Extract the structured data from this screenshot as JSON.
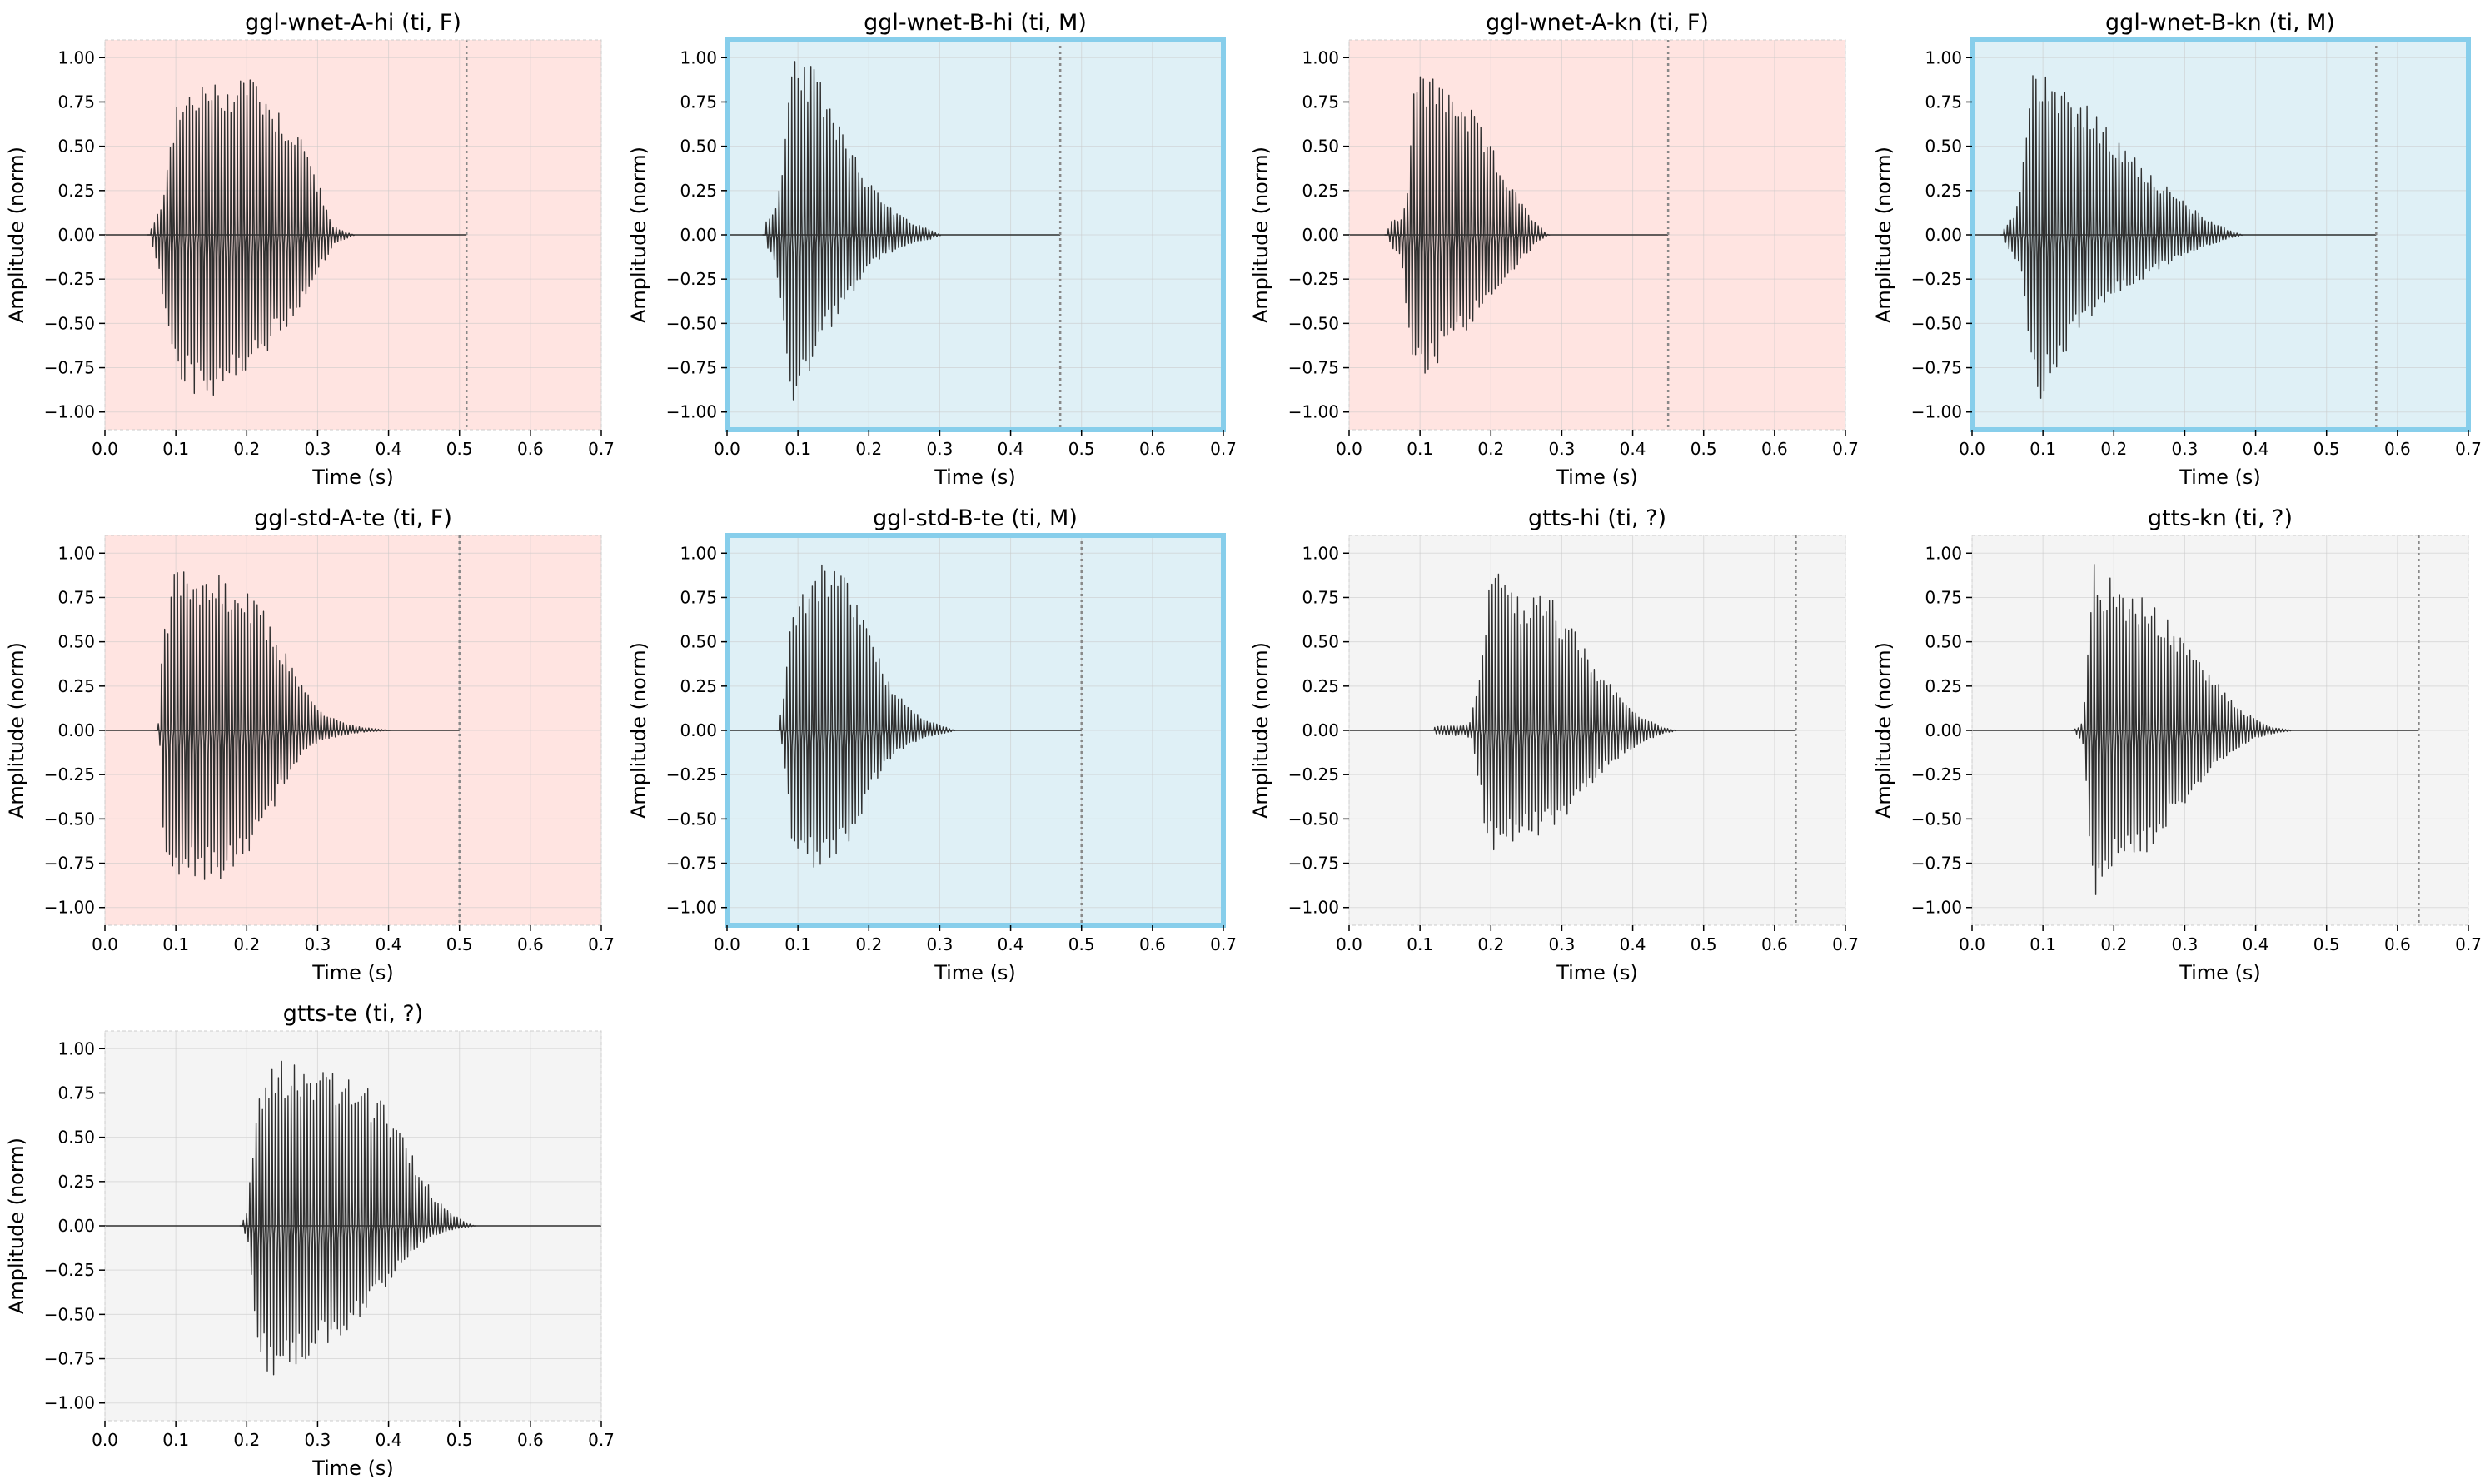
{
  "figure": {
    "background": "#ffffff",
    "panel_styles": {
      "F": {
        "background": "#ffe4e1",
        "border": "#cccccc",
        "highlight_border": false
      },
      "M": {
        "background": "#dff0f6",
        "border": "#87ceeb",
        "highlight_border": true
      },
      "?": {
        "background": "#f4f4f4",
        "border": "#cccccc",
        "highlight_border": false
      }
    },
    "waveform_color": "#2f2f2f",
    "marker_color": "#888888"
  },
  "chart_data": [
    {
      "type": "line",
      "title": "ggl-wnet-A-hi (ti, F)",
      "gender": "F",
      "xlabel": "Time (s)",
      "ylabel": "Amplitude (norm)",
      "xlim": [
        0,
        0.7
      ],
      "ylim": [
        -1.1,
        1.1
      ],
      "xticks": [
        0.0,
        0.1,
        0.2,
        0.3,
        0.4,
        0.5,
        0.6,
        0.7
      ],
      "xtick_labels": [
        "0.0",
        "0.1",
        "0.2",
        "0.3",
        "0.4",
        "0.5",
        "0.6",
        "0.7"
      ],
      "yticks": [
        1.0,
        0.75,
        0.5,
        0.25,
        0.0,
        -0.25,
        -0.5,
        -0.75,
        -1.0
      ],
      "ytick_labels": [
        "1.00",
        "0.75",
        "0.50",
        "0.25",
        "0.00",
        "−0.25",
        "−0.50",
        "−0.75",
        "−1.00"
      ],
      "grid": true,
      "signal_end": 0.51,
      "end_marker": 0.51,
      "envelope": {
        "t": [
          0.06,
          0.065,
          0.07,
          0.08,
          0.09,
          0.1,
          0.12,
          0.14,
          0.16,
          0.18,
          0.2,
          0.22,
          0.24,
          0.26,
          0.28,
          0.3,
          0.32,
          0.35
        ],
        "upper": [
          0,
          0.04,
          0.08,
          0.2,
          0.55,
          0.72,
          0.85,
          0.88,
          0.86,
          0.9,
          0.97,
          0.88,
          0.75,
          0.65,
          0.55,
          0.3,
          0.05,
          0
        ],
        "lower": [
          0,
          -0.08,
          -0.15,
          -0.4,
          -0.7,
          -0.82,
          -0.9,
          -0.95,
          -0.88,
          -0.82,
          -0.78,
          -0.72,
          -0.6,
          -0.5,
          -0.4,
          -0.2,
          -0.05,
          0
        ]
      }
    },
    {
      "type": "line",
      "title": "ggl-wnet-B-hi (ti, M)",
      "gender": "M",
      "xlabel": "Time (s)",
      "ylabel": "Amplitude (norm)",
      "xlim": [
        0,
        0.7
      ],
      "ylim": [
        -1.1,
        1.1
      ],
      "xticks": [
        0.0,
        0.1,
        0.2,
        0.3,
        0.4,
        0.5,
        0.6,
        0.7
      ],
      "xtick_labels": [
        "0.0",
        "0.1",
        "0.2",
        "0.3",
        "0.4",
        "0.5",
        "0.6",
        "0.7"
      ],
      "yticks": [
        1.0,
        0.75,
        0.5,
        0.25,
        0.0,
        -0.25,
        -0.5,
        -0.75,
        -1.0
      ],
      "ytick_labels": [
        "1.00",
        "0.75",
        "0.50",
        "0.25",
        "0.00",
        "−0.25",
        "−0.50",
        "−0.75",
        "−1.00"
      ],
      "grid": true,
      "signal_end": 0.47,
      "end_marker": 0.47,
      "envelope": {
        "t": [
          0.05,
          0.055,
          0.06,
          0.07,
          0.08,
          0.09,
          0.1,
          0.12,
          0.14,
          0.16,
          0.18,
          0.2,
          0.22,
          0.24,
          0.26,
          0.28,
          0.3
        ],
        "upper": [
          0,
          0.1,
          0.12,
          0.18,
          0.5,
          0.97,
          1.0,
          0.95,
          0.82,
          0.65,
          0.48,
          0.3,
          0.2,
          0.12,
          0.07,
          0.04,
          0
        ],
        "lower": [
          0,
          -0.1,
          -0.12,
          -0.3,
          -0.75,
          -0.95,
          -0.9,
          -0.7,
          -0.55,
          -0.42,
          -0.3,
          -0.18,
          -0.12,
          -0.08,
          -0.05,
          -0.03,
          0
        ]
      }
    },
    {
      "type": "line",
      "title": "ggl-wnet-A-kn (ti, F)",
      "gender": "F",
      "xlabel": "Time (s)",
      "ylabel": "Amplitude (norm)",
      "xlim": [
        0,
        0.7
      ],
      "ylim": [
        -1.1,
        1.1
      ],
      "xticks": [
        0.0,
        0.1,
        0.2,
        0.3,
        0.4,
        0.5,
        0.6,
        0.7
      ],
      "xtick_labels": [
        "0.0",
        "0.1",
        "0.2",
        "0.3",
        "0.4",
        "0.5",
        "0.6",
        "0.7"
      ],
      "yticks": [
        1.0,
        0.75,
        0.5,
        0.25,
        0.0,
        -0.25,
        -0.5,
        -0.75,
        -1.0
      ],
      "ytick_labels": [
        "1.00",
        "0.75",
        "0.50",
        "0.25",
        "0.00",
        "−0.25",
        "−0.50",
        "−0.75",
        "−1.00"
      ],
      "grid": true,
      "signal_end": 0.45,
      "end_marker": 0.45,
      "envelope": {
        "t": [
          0.05,
          0.06,
          0.07,
          0.08,
          0.09,
          0.1,
          0.12,
          0.14,
          0.16,
          0.18,
          0.2,
          0.22,
          0.24,
          0.26,
          0.28
        ],
        "upper": [
          0,
          0.1,
          0.08,
          0.2,
          0.88,
          0.93,
          0.9,
          0.85,
          0.78,
          0.65,
          0.5,
          0.35,
          0.2,
          0.08,
          0
        ],
        "lower": [
          0,
          -0.1,
          -0.15,
          -0.5,
          -0.85,
          -0.83,
          -0.75,
          -0.65,
          -0.55,
          -0.45,
          -0.35,
          -0.25,
          -0.15,
          -0.05,
          0
        ]
      }
    },
    {
      "type": "line",
      "title": "ggl-wnet-B-kn (ti, M)",
      "gender": "M",
      "xlabel": "Time (s)",
      "ylabel": "Amplitude (norm)",
      "xlim": [
        0,
        0.7
      ],
      "ylim": [
        -1.1,
        1.1
      ],
      "xticks": [
        0.0,
        0.1,
        0.2,
        0.3,
        0.4,
        0.5,
        0.6,
        0.7
      ],
      "xtick_labels": [
        "0.0",
        "0.1",
        "0.2",
        "0.3",
        "0.4",
        "0.5",
        "0.6",
        "0.7"
      ],
      "yticks": [
        1.0,
        0.75,
        0.5,
        0.25,
        0.0,
        -0.25,
        -0.5,
        -0.75,
        -1.0
      ],
      "ytick_labels": [
        "1.00",
        "0.75",
        "0.50",
        "0.25",
        "0.00",
        "−0.25",
        "−0.50",
        "−0.75",
        "−1.00"
      ],
      "grid": true,
      "signal_end": 0.57,
      "end_marker": 0.57,
      "envelope": {
        "t": [
          0.04,
          0.05,
          0.06,
          0.07,
          0.08,
          0.09,
          0.1,
          0.12,
          0.14,
          0.16,
          0.18,
          0.2,
          0.24,
          0.28,
          0.32,
          0.36,
          0.38
        ],
        "upper": [
          0,
          0.08,
          0.12,
          0.4,
          0.85,
          1.0,
          0.98,
          0.9,
          0.82,
          0.75,
          0.65,
          0.55,
          0.4,
          0.25,
          0.12,
          0.03,
          0
        ],
        "lower": [
          0,
          -0.1,
          -0.15,
          -0.3,
          -0.8,
          -0.97,
          -0.9,
          -0.75,
          -0.6,
          -0.5,
          -0.4,
          -0.35,
          -0.25,
          -0.15,
          -0.08,
          -0.02,
          0
        ]
      }
    },
    {
      "type": "line",
      "title": "ggl-std-A-te (ti, F)",
      "gender": "F",
      "xlabel": "Time (s)",
      "ylabel": "Amplitude (norm)",
      "xlim": [
        0,
        0.7
      ],
      "ylim": [
        -1.1,
        1.1
      ],
      "xticks": [
        0.0,
        0.1,
        0.2,
        0.3,
        0.4,
        0.5,
        0.6,
        0.7
      ],
      "xtick_labels": [
        "0.0",
        "0.1",
        "0.2",
        "0.3",
        "0.4",
        "0.5",
        "0.6",
        "0.7"
      ],
      "yticks": [
        1.0,
        0.75,
        0.5,
        0.25,
        0.0,
        -0.25,
        -0.5,
        -0.75,
        -1.0
      ],
      "ytick_labels": [
        "1.00",
        "0.75",
        "0.50",
        "0.25",
        "0.00",
        "−0.25",
        "−0.50",
        "−0.75",
        "−1.00"
      ],
      "grid": true,
      "signal_end": 0.5,
      "end_marker": 0.5,
      "envelope": {
        "t": [
          0.07,
          0.075,
          0.08,
          0.09,
          0.1,
          0.12,
          0.14,
          0.16,
          0.18,
          0.2,
          0.22,
          0.24,
          0.26,
          0.28,
          0.3,
          0.33,
          0.36,
          0.4
        ],
        "upper": [
          0,
          0.05,
          0.55,
          0.7,
          0.98,
          0.95,
          0.9,
          0.88,
          0.82,
          0.78,
          0.7,
          0.55,
          0.4,
          0.25,
          0.12,
          0.05,
          0.02,
          0
        ],
        "lower": [
          0,
          -0.1,
          -0.75,
          -0.88,
          -0.85,
          -0.85,
          -0.85,
          -0.85,
          -0.82,
          -0.72,
          -0.58,
          -0.4,
          -0.25,
          -0.12,
          -0.06,
          -0.03,
          -0.01,
          0
        ]
      }
    },
    {
      "type": "line",
      "title": "ggl-std-B-te (ti, M)",
      "gender": "M",
      "xlabel": "Time (s)",
      "ylabel": "Amplitude (norm)",
      "xlim": [
        0,
        0.7
      ],
      "ylim": [
        -1.1,
        1.1
      ],
      "xticks": [
        0.0,
        0.1,
        0.2,
        0.3,
        0.4,
        0.5,
        0.6,
        0.7
      ],
      "xtick_labels": [
        "0.0",
        "0.1",
        "0.2",
        "0.3",
        "0.4",
        "0.5",
        "0.6",
        "0.7"
      ],
      "yticks": [
        1.0,
        0.75,
        0.5,
        0.25,
        0.0,
        -0.25,
        -0.5,
        -0.75,
        -1.0
      ],
      "ytick_labels": [
        "1.00",
        "0.75",
        "0.50",
        "0.25",
        "0.00",
        "−0.25",
        "−0.50",
        "−0.75",
        "−1.00"
      ],
      "grid": true,
      "signal_end": 0.5,
      "end_marker": 0.5,
      "envelope": {
        "t": [
          0.07,
          0.075,
          0.08,
          0.09,
          0.1,
          0.12,
          0.14,
          0.16,
          0.18,
          0.2,
          0.22,
          0.24,
          0.26,
          0.28,
          0.3,
          0.32
        ],
        "upper": [
          0,
          0.1,
          0.2,
          0.65,
          0.8,
          0.9,
          0.97,
          0.92,
          0.8,
          0.55,
          0.35,
          0.2,
          0.12,
          0.06,
          0.03,
          0
        ],
        "lower": [
          0,
          -0.1,
          -0.25,
          -0.75,
          -0.75,
          -0.78,
          -0.8,
          -0.72,
          -0.55,
          -0.35,
          -0.2,
          -0.12,
          -0.07,
          -0.04,
          -0.02,
          0
        ]
      }
    },
    {
      "type": "line",
      "title": "gtts-hi (ti, ?)",
      "gender": "?",
      "xlabel": "Time (s)",
      "ylabel": "Amplitude (norm)",
      "xlim": [
        0,
        0.7
      ],
      "ylim": [
        -1.1,
        1.1
      ],
      "xticks": [
        0.0,
        0.1,
        0.2,
        0.3,
        0.4,
        0.5,
        0.6,
        0.7
      ],
      "xtick_labels": [
        "0.0",
        "0.1",
        "0.2",
        "0.3",
        "0.4",
        "0.5",
        "0.6",
        "0.7"
      ],
      "yticks": [
        1.0,
        0.75,
        0.5,
        0.25,
        0.0,
        -0.25,
        -0.5,
        -0.75,
        -1.0
      ],
      "ytick_labels": [
        "1.00",
        "0.75",
        "0.50",
        "0.25",
        "0.00",
        "−0.25",
        "−0.50",
        "−0.75",
        "−1.00"
      ],
      "grid": true,
      "signal_end": 0.63,
      "end_marker": 0.63,
      "envelope": {
        "t": [
          0.12,
          0.14,
          0.16,
          0.17,
          0.18,
          0.19,
          0.2,
          0.22,
          0.24,
          0.26,
          0.28,
          0.3,
          0.32,
          0.34,
          0.36,
          0.38,
          0.4,
          0.42,
          0.44,
          0.46
        ],
        "upper": [
          0.02,
          0.03,
          0.03,
          0.05,
          0.25,
          0.6,
          0.97,
          0.85,
          0.75,
          0.82,
          0.8,
          0.65,
          0.55,
          0.4,
          0.3,
          0.2,
          0.12,
          0.06,
          0.02,
          0
        ],
        "lower": [
          -0.02,
          -0.03,
          -0.03,
          -0.05,
          -0.3,
          -0.6,
          -0.72,
          -0.65,
          -0.6,
          -0.6,
          -0.58,
          -0.5,
          -0.42,
          -0.3,
          -0.22,
          -0.15,
          -0.1,
          -0.05,
          -0.02,
          0
        ]
      }
    },
    {
      "type": "line",
      "title": "gtts-kn (ti, ?)",
      "gender": "?",
      "xlabel": "Time (s)",
      "ylabel": "Amplitude (norm)",
      "xlim": [
        0,
        0.7
      ],
      "ylim": [
        -1.1,
        1.1
      ],
      "xticks": [
        0.0,
        0.1,
        0.2,
        0.3,
        0.4,
        0.5,
        0.6,
        0.7
      ],
      "xtick_labels": [
        "0.0",
        "0.1",
        "0.2",
        "0.3",
        "0.4",
        "0.5",
        "0.6",
        "0.7"
      ],
      "yticks": [
        1.0,
        0.75,
        0.5,
        0.25,
        0.0,
        -0.25,
        -0.5,
        -0.75,
        -1.0
      ],
      "ytick_labels": [
        "1.00",
        "0.75",
        "0.50",
        "0.25",
        "0.00",
        "−0.25",
        "−0.50",
        "−0.75",
        "−1.00"
      ],
      "grid": true,
      "signal_end": 0.63,
      "end_marker": 0.63,
      "envelope": {
        "t": [
          0.14,
          0.15,
          0.155,
          0.16,
          0.17,
          0.18,
          0.2,
          0.22,
          0.24,
          0.26,
          0.28,
          0.3,
          0.32,
          0.34,
          0.36,
          0.38,
          0.4,
          0.42,
          0.45
        ],
        "upper": [
          0,
          0.02,
          0.05,
          0.3,
          0.97,
          0.9,
          0.85,
          0.78,
          0.75,
          0.7,
          0.6,
          0.5,
          0.4,
          0.3,
          0.2,
          0.12,
          0.06,
          0.02,
          0
        ],
        "lower": [
          0,
          -0.05,
          -0.1,
          -0.5,
          -1.0,
          -0.85,
          -0.8,
          -0.75,
          -0.7,
          -0.62,
          -0.5,
          -0.4,
          -0.3,
          -0.22,
          -0.15,
          -0.08,
          -0.04,
          -0.02,
          0
        ]
      }
    },
    {
      "type": "line",
      "title": "gtts-te (ti, ?)",
      "gender": "?",
      "xlabel": "Time (s)",
      "ylabel": "Amplitude (norm)",
      "xlim": [
        0,
        0.7
      ],
      "ylim": [
        -1.1,
        1.1
      ],
      "xticks": [
        0.0,
        0.1,
        0.2,
        0.3,
        0.4,
        0.5,
        0.6,
        0.7
      ],
      "xtick_labels": [
        "0.0",
        "0.1",
        "0.2",
        "0.3",
        "0.4",
        "0.5",
        "0.6",
        "0.7"
      ],
      "yticks": [
        1.0,
        0.75,
        0.5,
        0.25,
        0.0,
        -0.25,
        -0.5,
        -0.75,
        -1.0
      ],
      "ytick_labels": [
        "1.00",
        "0.75",
        "0.50",
        "0.25",
        "0.00",
        "−0.25",
        "−0.50",
        "−0.75",
        "−1.00"
      ],
      "grid": true,
      "signal_end": 0.7,
      "end_marker": null,
      "envelope": {
        "t": [
          0.19,
          0.2,
          0.21,
          0.22,
          0.24,
          0.26,
          0.28,
          0.3,
          0.32,
          0.34,
          0.36,
          0.38,
          0.4,
          0.42,
          0.44,
          0.46,
          0.48,
          0.5,
          0.52
        ],
        "upper": [
          0,
          0.08,
          0.6,
          0.85,
          0.97,
          0.95,
          0.93,
          0.9,
          0.87,
          0.85,
          0.8,
          0.75,
          0.65,
          0.5,
          0.35,
          0.2,
          0.1,
          0.04,
          0
        ],
        "lower": [
          0,
          -0.1,
          -0.65,
          -0.8,
          -0.88,
          -0.82,
          -0.75,
          -0.7,
          -0.65,
          -0.6,
          -0.52,
          -0.42,
          -0.3,
          -0.2,
          -0.12,
          -0.06,
          -0.03,
          -0.01,
          0
        ]
      }
    }
  ]
}
